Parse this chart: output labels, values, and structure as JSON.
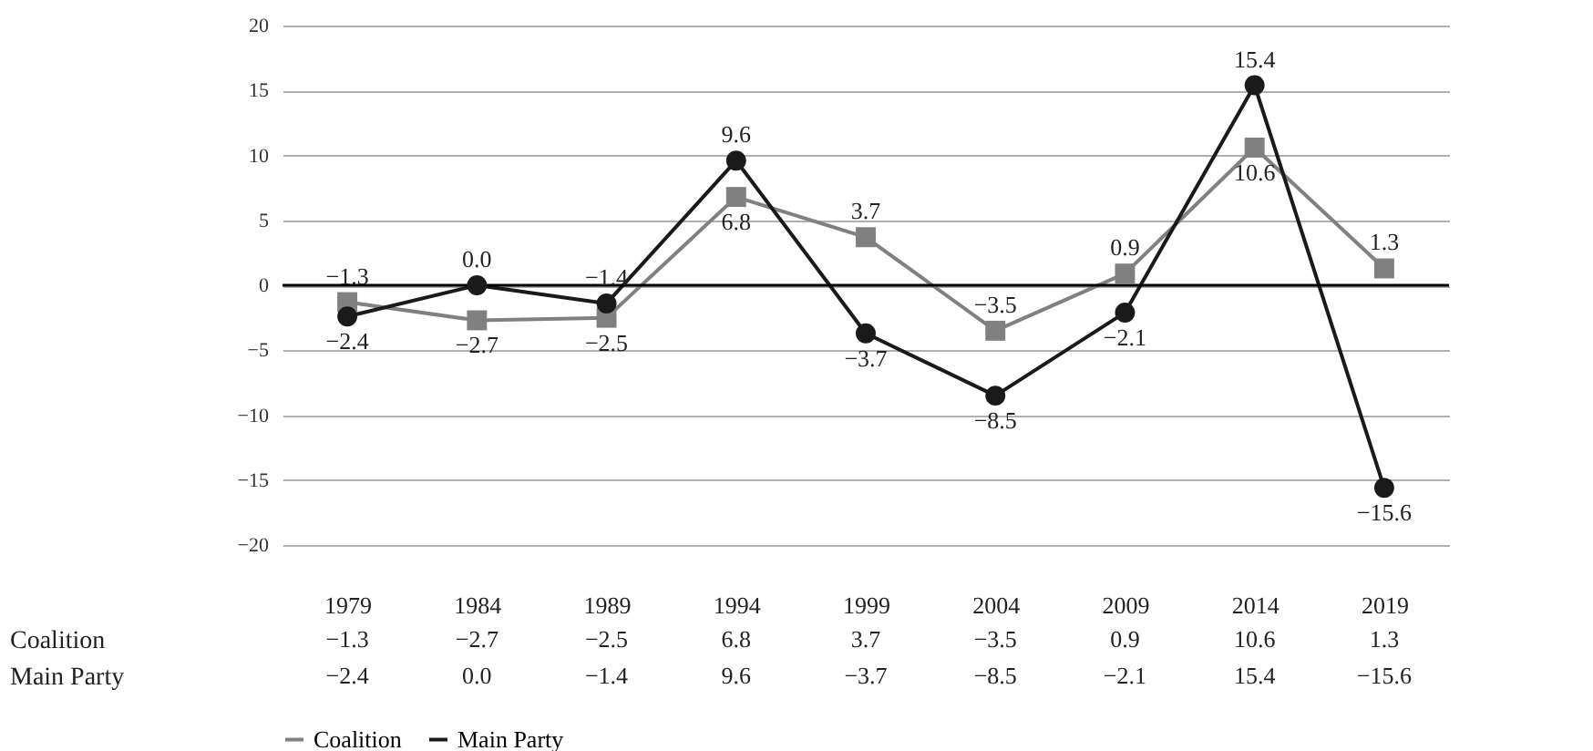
{
  "chart_data": {
    "type": "line",
    "categories": [
      "1979",
      "1984",
      "1989",
      "1994",
      "1999",
      "2004",
      "2009",
      "2014",
      "2019"
    ],
    "series": [
      {
        "name": "Coalition",
        "color": "#808080",
        "marker": "square",
        "values": [
          -1.3,
          -2.7,
          -2.5,
          6.8,
          3.7,
          -3.5,
          0.9,
          10.6,
          1.3
        ],
        "value_labels": [
          "−1.3",
          "−2.7",
          "−2.5",
          "6.8",
          "3.7",
          "−3.5",
          "0.9",
          "10.6",
          "1.3"
        ]
      },
      {
        "name": "Main Party",
        "color": "#1a1a1a",
        "marker": "circle",
        "values": [
          -2.4,
          0.0,
          -1.4,
          9.6,
          -3.7,
          -8.5,
          -2.1,
          15.4,
          -15.6
        ],
        "value_labels": [
          "−2.4",
          "0.0",
          "−1.4",
          "9.6",
          "−3.7",
          "−8.5",
          "−2.1",
          "15.4",
          "−15.6"
        ]
      }
    ],
    "ylim": [
      -20,
      20
    ],
    "yticks": [
      -20,
      -15,
      -10,
      -5,
      0,
      5,
      10,
      15,
      20
    ],
    "grid": "y",
    "legend": "bottom",
    "line_style": "solid",
    "ref_lines": [
      {
        "axis": "y",
        "value": 0,
        "color": "#000000"
      }
    ]
  }
}
